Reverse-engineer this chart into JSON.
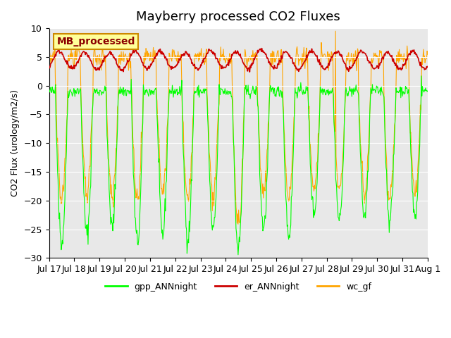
{
  "title": "Mayberry processed CO2 Fluxes",
  "ylabel": "CO2 Flux (urology/m2/s)",
  "ylim": [
    -30,
    10
  ],
  "yticks": [
    -30,
    -25,
    -20,
    -15,
    -10,
    -5,
    0,
    5,
    10
  ],
  "bg_color": "#e8e8e8",
  "fig_bg": "#ffffff",
  "gpp_color": "#00ff00",
  "er_color": "#cc0000",
  "wc_color": "#ffa500",
  "legend_label": "MB_processed",
  "legend_bg": "#ffff99",
  "legend_edge": "#cc8800",
  "legend_text_color": "#8b0000",
  "x_tick_labels": [
    "Jul 17",
    "Jul 18",
    "Jul 19",
    "Jul 20",
    "Jul 21",
    "Jul 22",
    "Jul 23",
    "Jul 24",
    "Jul 25",
    "Jul 26",
    "Jul 27",
    "Jul 28",
    "Jul 29",
    "Jul 30",
    "Jul 31",
    "Aug 1"
  ],
  "n_days": 15,
  "points_per_day": 48,
  "gpp_day_peak": -26,
  "gpp_night_val": -1,
  "wc_day_peak": -22,
  "wc_night_val": 5
}
